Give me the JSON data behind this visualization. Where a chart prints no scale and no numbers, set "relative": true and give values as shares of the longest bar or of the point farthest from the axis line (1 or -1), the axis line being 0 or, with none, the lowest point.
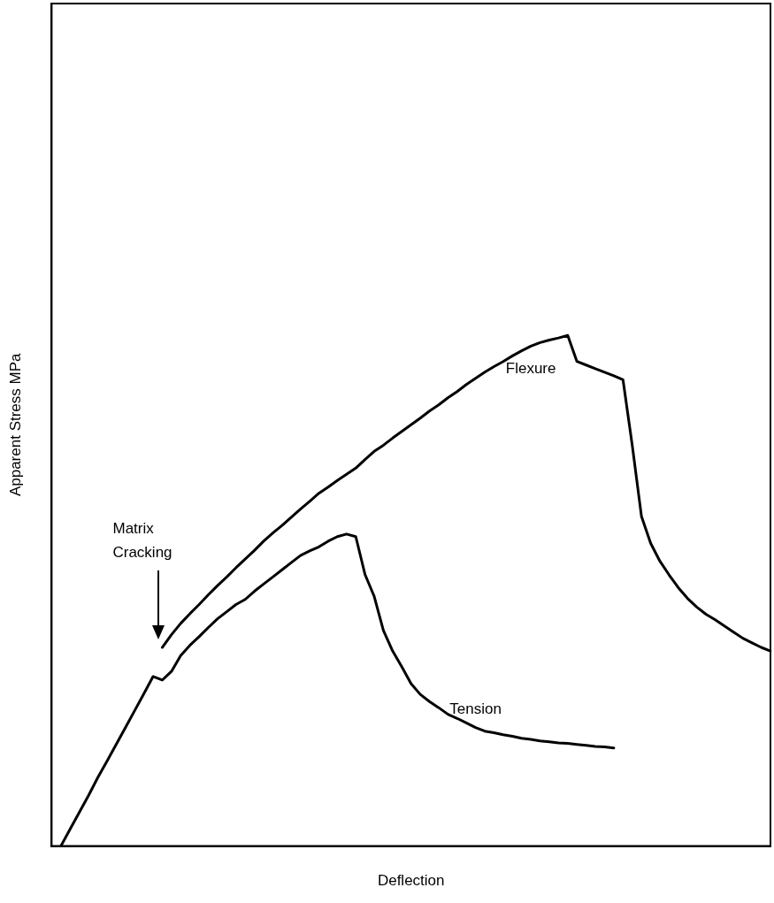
{
  "chart_data": {
    "type": "line",
    "relative": true,
    "xlabel": "Deflection",
    "ylabel": "Apparent Stress MPa",
    "categories": [
      null,
      null,
      null,
      null,
      null,
      null,
      null,
      null,
      null,
      null,
      null,
      null,
      null,
      null,
      null,
      null,
      null,
      null,
      null,
      null,
      null,
      null,
      null,
      null,
      null,
      null,
      null,
      null,
      null,
      null,
      null,
      null,
      null,
      null,
      null,
      null,
      null,
      null,
      null,
      null,
      null,
      null,
      null,
      null,
      null,
      null,
      null,
      null,
      null,
      null,
      null,
      null,
      null,
      null,
      null,
      null,
      null,
      null,
      null,
      null,
      null,
      null,
      null,
      null,
      null,
      null,
      null,
      null,
      null,
      null,
      null,
      null,
      null,
      null,
      null,
      null,
      null,
      null,
      null
    ],
    "series": [
      {
        "name": "Flexure",
        "color": "#000000",
        "values": [
          null,
          null,
          null,
          null,
          null,
          null,
          null,
          null,
          null,
          null,
          null,
          null,
          0.389,
          0.414,
          0.436,
          0.455,
          0.473,
          0.492,
          0.51,
          0.527,
          0.545,
          0.562,
          0.579,
          0.597,
          0.613,
          0.628,
          0.644,
          0.66,
          0.675,
          0.691,
          0.703,
          0.716,
          0.728,
          0.74,
          0.757,
          0.773,
          0.785,
          0.799,
          0.812,
          0.825,
          0.838,
          0.852,
          0.864,
          0.878,
          0.89,
          0.904,
          0.916,
          0.928,
          0.939,
          0.949,
          0.96,
          0.97,
          0.979,
          0.986,
          0.991,
          0.995,
          1.0,
          0.949,
          0.942,
          0.935,
          0.928,
          0.921,
          0.913,
          0.785,
          0.646,
          0.593,
          0.558,
          0.531,
          0.506,
          0.485,
          0.468,
          0.454,
          0.443,
          0.431,
          0.419,
          0.407,
          0.398,
          0.389,
          0.382
        ]
      },
      {
        "name": "Tension",
        "color": "#000000",
        "values": [
          null,
          0,
          0.033,
          0.066,
          0.099,
          0.134,
          0.166,
          0.199,
          0.232,
          0.265,
          0.298,
          0.332,
          0.325,
          0.342,
          0.373,
          0.393,
          0.41,
          0.428,
          0.445,
          0.459,
          0.473,
          0.483,
          0.499,
          0.513,
          0.527,
          0.541,
          0.555,
          0.569,
          0.578,
          0.586,
          0.597,
          0.606,
          0.611,
          0.606,
          0.532,
          0.489,
          0.422,
          0.382,
          0.351,
          0.318,
          0.297,
          0.283,
          0.271,
          0.258,
          0.25,
          0.241,
          0.232,
          0.225,
          0.222,
          0.218,
          0.215,
          0.211,
          0.209,
          0.206,
          0.204,
          0.202,
          0.201,
          0.199,
          0.197,
          0.195,
          0.194,
          0.192,
          null,
          null,
          null,
          null,
          null,
          null,
          null,
          null,
          null,
          null,
          null,
          null,
          null,
          null,
          null,
          null,
          null
        ]
      }
    ],
    "annotations": [
      "Matrix Cracking"
    ],
    "marker": "none",
    "line_style": "solid",
    "grid": false,
    "legend": false
  }
}
